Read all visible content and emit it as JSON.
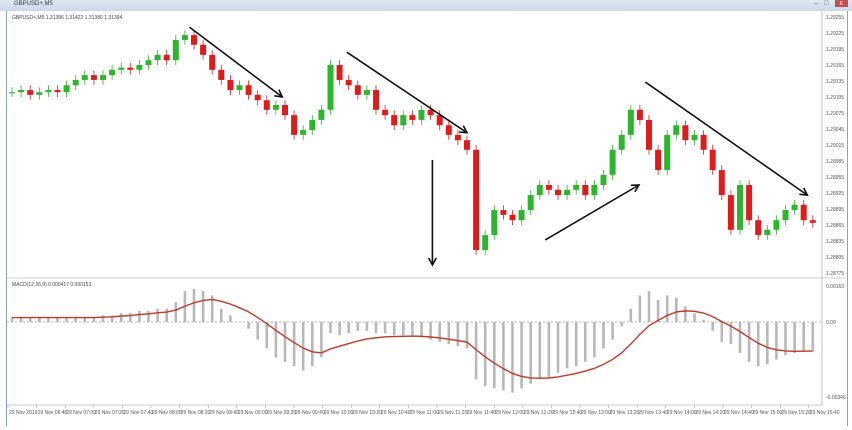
{
  "window": {
    "title": "GBPUSD+,M5",
    "minimize": "–",
    "maximize": "□",
    "close": "x"
  },
  "main_info": "GBPUSD+,M5  1.31386 1.31422 1.31380 1.31394",
  "macd_info": "MACD(12,26,9) 0.000417 0.000153",
  "colors": {
    "bull": "#2db52d",
    "bear": "#e01b1b",
    "histogram": "#b8b8b8",
    "signal": "#c0392b",
    "arrow": "#111111"
  },
  "chart_data": [
    {
      "type": "candlestick",
      "title": "GBPUSD+,M5",
      "first_open": 1.29114,
      "closes": [
        1.29114,
        1.29118,
        1.29109,
        1.29114,
        1.29118,
        1.29114,
        1.29127,
        1.29137,
        1.29146,
        1.29137,
        1.29146,
        1.29156,
        1.2916,
        1.29156,
        1.29165,
        1.29174,
        1.29184,
        1.29174,
        1.29212,
        1.29221,
        1.29203,
        1.29184,
        1.29156,
        1.29137,
        1.29118,
        1.29127,
        1.29109,
        1.29099,
        1.29081,
        1.2909,
        1.29071,
        1.29034,
        1.29043,
        1.29062,
        1.29081,
        1.29165,
        1.29137,
        1.29127,
        1.29109,
        1.29118,
        1.29081,
        1.29071,
        1.29052,
        1.29071,
        1.29062,
        1.29081,
        1.29071,
        1.29052,
        1.29034,
        1.29024,
        1.29006,
        1.28818,
        1.28846,
        1.28893,
        1.28884,
        1.28874,
        1.28893,
        1.28921,
        1.2894,
        1.28931,
        1.28921,
        1.28931,
        1.2894,
        1.28921,
        1.2894,
        1.28959,
        1.29006,
        1.29034,
        1.29081,
        1.29062,
        1.29006,
        1.28968,
        1.29034,
        1.29052,
        1.29024,
        1.29034,
        1.29006,
        1.28968,
        1.28921,
        1.28856,
        1.2894,
        1.28874,
        1.28846,
        1.28856,
        1.28874,
        1.28893,
        1.28903,
        1.28874,
        1.28869
      ],
      "ylim": [
        1.28775,
        1.29255
      ],
      "y_ticks": [
        "1.29255",
        "1.29225",
        "1.29195",
        "1.29165",
        "1.29135",
        "1.29105",
        "1.29075",
        "1.29045",
        "1.29015",
        "1.28985",
        "1.28955",
        "1.28925",
        "1.28895",
        "1.28865",
        "1.28835",
        "1.28805",
        "1.28775"
      ],
      "x_ticks": [
        "29 Nov 2019",
        "29 Nov 06:40",
        "29 Nov 07:00",
        "29 Nov 07:20",
        "29 Nov 07:40",
        "29 Nov 08:00",
        "29 Nov 08:20",
        "29 Nov 08:40",
        "29 Nov 09:00",
        "29 Nov 09:20",
        "29 Nov 09:40",
        "29 Nov 10:00",
        "29 Nov 10:20",
        "29 Nov 10:40",
        "29 Nov 11:00",
        "29 Nov 11:20",
        "29 Nov 11:40",
        "29 Nov 12:00",
        "29 Nov 12:20",
        "29 Nov 12:40",
        "29 Nov 13:00",
        "29 Nov 13:20",
        "29 Nov 13:40",
        "29 Nov 14:00",
        "29 Nov 14:20",
        "29 Nov 14:40",
        "29 Nov 15:00",
        "29 Nov 15:20",
        "29 Nov 15:40"
      ],
      "arrows": [
        {
          "from": [
            19.5,
            1.29236
          ],
          "to": [
            29.7,
            1.29105
          ]
        },
        {
          "from": [
            36.8,
            1.29189
          ],
          "to": [
            50.0,
            1.29038
          ]
        },
        {
          "from": [
            46.2,
            1.28987
          ],
          "to": [
            46.2,
            1.2879
          ]
        },
        {
          "from": [
            58.6,
            1.28837
          ],
          "to": [
            68.9,
            1.2894
          ]
        },
        {
          "from": [
            69.6,
            1.29133
          ],
          "to": [
            87.4,
            1.28921
          ]
        }
      ],
      "grid": false
    },
    {
      "type": "bar+line",
      "title": "MACD(12,26,9)",
      "histogram": [
        0.0002,
        0.0002,
        0.0002,
        0.0002,
        0.0002,
        0.0002,
        0.0002,
        0.0002,
        0.0002,
        0.0002,
        0.0003,
        0.0003,
        0.0004,
        0.0004,
        0.0005,
        0.0005,
        0.0006,
        0.0006,
        0.0009,
        0.0014,
        0.0015,
        0.0014,
        0.0012,
        0.0006,
        0.0003,
        0.0,
        -0.0003,
        -0.0008,
        -0.0012,
        -0.0016,
        -0.0018,
        -0.002,
        -0.0022,
        -0.002,
        -0.0016,
        -0.0005,
        -0.0006,
        -0.0005,
        -0.0004,
        -0.0004,
        -0.0005,
        -0.0005,
        -0.0006,
        -0.0006,
        -0.0006,
        -0.0007,
        -0.0008,
        -0.0009,
        -0.001,
        -0.0011,
        -0.0012,
        -0.0026,
        -0.0029,
        -0.003,
        -0.0031,
        -0.0032,
        -0.003,
        -0.0028,
        -0.0026,
        -0.0025,
        -0.0023,
        -0.0021,
        -0.002,
        -0.0018,
        -0.0016,
        -0.0012,
        -0.0008,
        -0.0002,
        0.0006,
        0.0012,
        0.0014,
        0.001,
        0.0012,
        0.0011,
        0.0007,
        0.0004,
        0.0001,
        -0.0004,
        -0.0009,
        -0.001,
        -0.0014,
        -0.0018,
        -0.002,
        -0.0019,
        -0.0017,
        -0.0015,
        -0.0014,
        -0.0013,
        -0.0013
      ],
      "signal_period": 9,
      "ylim": [
        -0.00346,
        0.00163
      ],
      "y_ticks": [
        "0.00163",
        "0.00",
        "-0.00346"
      ]
    }
  ]
}
